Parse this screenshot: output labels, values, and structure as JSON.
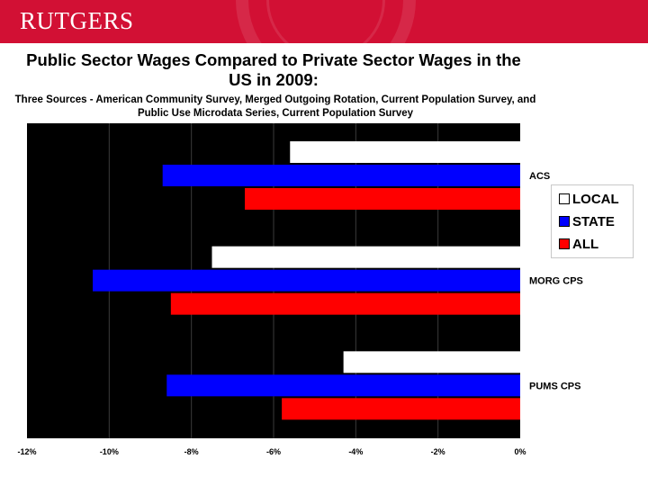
{
  "header": {
    "logo_text": "RUTGERS",
    "brand_color": "#d21034"
  },
  "chart_data": {
    "type": "bar",
    "orientation": "horizontal",
    "title": "Public Sector Wages Compared to Private Sector Wages in the US in 2009:",
    "subtitle": "Three Sources - American Community Survey, Merged Outgoing Rotation, Current Population Survey, and Public Use Microdata Series, Current Population Survey",
    "categories": [
      "ACS",
      "MORG CPS",
      "PUMS CPS"
    ],
    "series": [
      {
        "name": "LOCAL",
        "color": "#ffffff",
        "values": [
          -5.6,
          -7.5,
          -4.3
        ]
      },
      {
        "name": "STATE",
        "color": "#0000ff",
        "values": [
          -8.7,
          -10.4,
          -8.6
        ]
      },
      {
        "name": "ALL",
        "color": "#ff0000",
        "values": [
          -6.7,
          -8.5,
          -5.8
        ]
      }
    ],
    "xlim": [
      -12,
      0
    ],
    "xticks": [
      -12,
      -10,
      -8,
      -6,
      -4,
      -2,
      0
    ],
    "xtick_labels": [
      "-12%",
      "-10%",
      "-8%",
      "-6%",
      "-4%",
      "-2%",
      "0%"
    ],
    "plot_background": "#000000",
    "grid": true,
    "legend_position": "right"
  }
}
